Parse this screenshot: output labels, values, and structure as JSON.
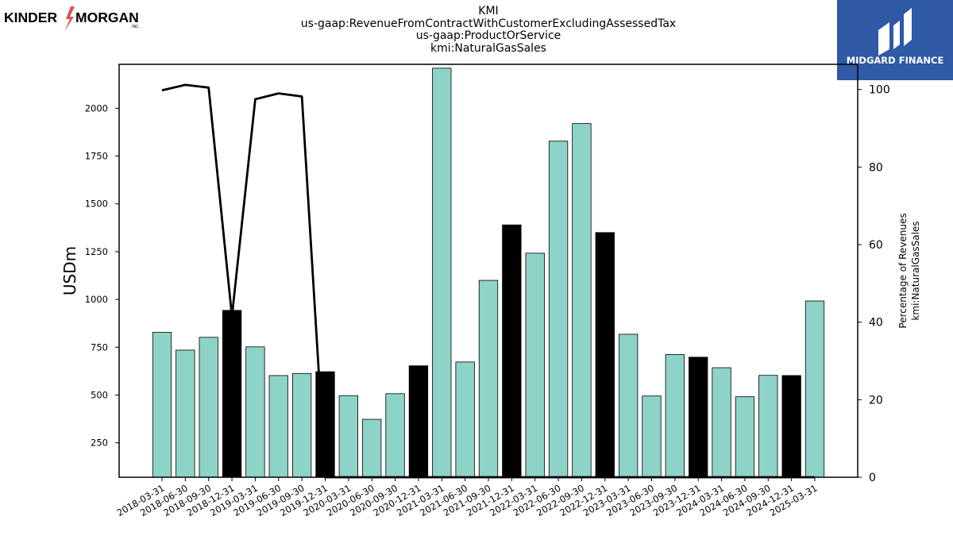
{
  "header": {
    "company_logo_text": "KINDER MORGAN",
    "company_logo_sub": "INC.",
    "ticker": "KMI",
    "concept": "us-gaap:RevenueFromContractWithCustomerExcludingAssessedTax",
    "axis": "us-gaap:ProductOrService",
    "member": "kmi:NaturalGasSales",
    "brand_logo_text": "MIDGARD FINANCE"
  },
  "colors": {
    "bar_quarter": "#8dd3c7",
    "bar_year_end": "#000000",
    "line": "#000000",
    "brand_bg": "#2e5aa6"
  },
  "chart_data": {
    "type": "bar",
    "categories": [
      "2018-03-31",
      "2018-06-30",
      "2018-09-30",
      "2018-12-31",
      "2019-03-31",
      "2019-06-30",
      "2019-09-30",
      "2019-12-31",
      "2020-03-31",
      "2020-06-30",
      "2020-09-30",
      "2020-12-31",
      "2021-03-31",
      "2021-06-30",
      "2021-09-30",
      "2021-12-31",
      "2022-03-31",
      "2022-06-30",
      "2022-09-30",
      "2022-12-31",
      "2023-03-31",
      "2023-06-30",
      "2023-09-30",
      "2023-12-31",
      "2024-03-31",
      "2024-06-30",
      "2024-09-30",
      "2024-12-31",
      "2025-03-31"
    ],
    "values": [
      828,
      735,
      802,
      943,
      752,
      602,
      613,
      622,
      497,
      373,
      507,
      653,
      2210,
      673,
      1100,
      1390,
      1242,
      1828,
      1920,
      1350,
      818,
      495,
      712,
      698,
      643,
      491,
      603,
      602,
      992
    ],
    "highlight_categories": [
      "2018-12-31",
      "2019-12-31",
      "2020-12-31",
      "2021-12-31",
      "2022-12-31",
      "2023-12-31",
      "2024-12-31"
    ],
    "ylabel": "USDm",
    "yticks": [
      250,
      500,
      750,
      1000,
      1250,
      1500,
      1750,
      2000
    ],
    "ylim": [
      70,
      2230
    ],
    "secondary_axis": {
      "label_line1": "Percentage of Revenues",
      "label_line2": "kmi:NaturalGasSales",
      "ticks": [
        0,
        20,
        40,
        60,
        80,
        100
      ],
      "ylim": [
        0,
        106.5
      ],
      "line_values": [
        99.8,
        101.2,
        100.5,
        41.5,
        97.5,
        99.0,
        98.2,
        0,
        0,
        0,
        0,
        0,
        0,
        0,
        0,
        0,
        0,
        0,
        0,
        0,
        0,
        0,
        0,
        0,
        0,
        0,
        0,
        0,
        0
      ]
    },
    "grid": false
  }
}
